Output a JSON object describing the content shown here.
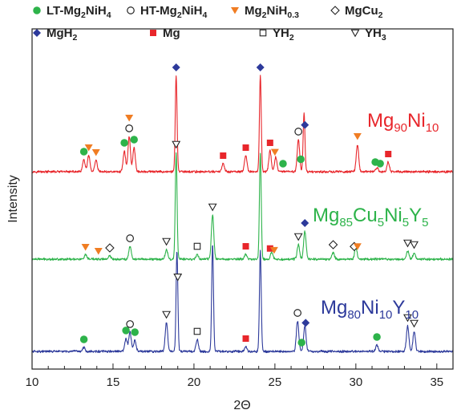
{
  "chart_data": {
    "type": "line",
    "title": "",
    "xlabel": "2Θ",
    "ylabel": "Intensity",
    "xlim": [
      10,
      36
    ],
    "x_ticks": [
      "10",
      "15",
      "20",
      "25",
      "30",
      "35"
    ],
    "y_ticks_shown": false,
    "grid": false,
    "legend_position": "top",
    "legend": [
      {
        "key": "lt",
        "label": {
          "base": "LT-Mg",
          "sub1": "2",
          "mid": "NiH",
          "sub2": "4"
        },
        "marker": "circle-filled",
        "color": "#2db34a"
      },
      {
        "key": "ht",
        "label": {
          "base": "HT-Mg",
          "sub1": "2",
          "mid": "NiH",
          "sub2": "4"
        },
        "marker": "circle-open",
        "color": "#222222"
      },
      {
        "key": "mni03",
        "label": {
          "base": "Mg",
          "sub1": "2",
          "mid": "NiH",
          "sub2": "0.3"
        },
        "marker": "triangle-down-filled",
        "color": "#f07d23"
      },
      {
        "key": "mgcu2",
        "label": {
          "base": "MgCu",
          "sub1": "2",
          "mid": "",
          "sub2": ""
        },
        "marker": "diamond-open",
        "color": "#222222"
      },
      {
        "key": "mgh2",
        "label": {
          "base": "MgH",
          "sub1": "2",
          "mid": "",
          "sub2": ""
        },
        "marker": "diamond-filled",
        "color": "#2d3a9b"
      },
      {
        "key": "mg",
        "label": {
          "base": "Mg",
          "sub1": "",
          "mid": "",
          "sub2": ""
        },
        "marker": "square-filled",
        "color": "#e8262b"
      },
      {
        "key": "yh2",
        "label": {
          "base": "YH",
          "sub1": "2",
          "mid": "",
          "sub2": ""
        },
        "marker": "square-open",
        "color": "#222222"
      },
      {
        "key": "yh3",
        "label": {
          "base": "YH",
          "sub1": "3",
          "mid": "",
          "sub2": ""
        },
        "marker": "triangle-down-open",
        "color": "#222222"
      }
    ],
    "series": [
      {
        "name": "Mg90Ni10",
        "label_parts": [
          {
            "t": "Mg"
          },
          {
            "t": "90",
            "sub": true
          },
          {
            "t": "Ni"
          },
          {
            "t": "10",
            "sub": true
          }
        ],
        "color": "#e8262b",
        "peaks": [
          {
            "x": 13.2,
            "h": 15
          },
          {
            "x": 13.5,
            "h": 20
          },
          {
            "x": 13.95,
            "h": 14
          },
          {
            "x": 15.7,
            "h": 26
          },
          {
            "x": 16.0,
            "h": 44
          },
          {
            "x": 16.3,
            "h": 30
          },
          {
            "x": 18.9,
            "h": 120
          },
          {
            "x": 21.8,
            "h": 10
          },
          {
            "x": 23.2,
            "h": 20
          },
          {
            "x": 24.1,
            "h": 120
          },
          {
            "x": 24.7,
            "h": 26
          },
          {
            "x": 25.05,
            "h": 18
          },
          {
            "x": 26.45,
            "h": 40
          },
          {
            "x": 26.8,
            "h": 73
          },
          {
            "x": 30.1,
            "h": 34
          },
          {
            "x": 31.3,
            "h": 5
          },
          {
            "x": 32.0,
            "h": 12
          }
        ],
        "markers": [
          {
            "x": 13.2,
            "kind": "lt"
          },
          {
            "x": 13.5,
            "kind": "mni03"
          },
          {
            "x": 13.95,
            "kind": "mni03"
          },
          {
            "x": 15.7,
            "kind": "lt"
          },
          {
            "x": 16.0,
            "kind": "ht"
          },
          {
            "x": 16.0,
            "kind": "mni03"
          },
          {
            "x": 16.3,
            "kind": "lt"
          },
          {
            "x": 18.9,
            "kind": "mgh2"
          },
          {
            "x": 21.8,
            "kind": "mg"
          },
          {
            "x": 23.2,
            "kind": "mg"
          },
          {
            "x": 24.1,
            "kind": "mgh2"
          },
          {
            "x": 24.7,
            "kind": "mg"
          },
          {
            "x": 25.0,
            "kind": "mni03"
          },
          {
            "x": 25.5,
            "kind": "lt"
          },
          {
            "x": 26.45,
            "kind": "ht"
          },
          {
            "x": 26.6,
            "kind": "lt"
          },
          {
            "x": 26.85,
            "kind": "mgh2"
          },
          {
            "x": 30.1,
            "kind": "mni03"
          },
          {
            "x": 31.2,
            "kind": "lt"
          },
          {
            "x": 31.5,
            "kind": "lt"
          },
          {
            "x": 32.0,
            "kind": "mg"
          }
        ]
      },
      {
        "name": "Mg85Cu5Ni5Y5",
        "label_parts": [
          {
            "t": "Mg"
          },
          {
            "t": "85",
            "sub": true
          },
          {
            "t": "Cu"
          },
          {
            "t": "5",
            "sub": true
          },
          {
            "t": "Ni"
          },
          {
            "t": "5",
            "sub": true
          },
          {
            "t": "Y"
          },
          {
            "t": "5",
            "sub": true
          }
        ],
        "color": "#2db34a",
        "peaks": [
          {
            "x": 13.3,
            "h": 5
          },
          {
            "x": 14.8,
            "h": 4
          },
          {
            "x": 16.05,
            "h": 16
          },
          {
            "x": 18.3,
            "h": 12
          },
          {
            "x": 18.9,
            "h": 133
          },
          {
            "x": 20.2,
            "h": 6
          },
          {
            "x": 21.15,
            "h": 55
          },
          {
            "x": 23.2,
            "h": 6
          },
          {
            "x": 24.1,
            "h": 133
          },
          {
            "x": 24.8,
            "h": 8
          },
          {
            "x": 26.45,
            "h": 18
          },
          {
            "x": 26.85,
            "h": 35
          },
          {
            "x": 28.6,
            "h": 8
          },
          {
            "x": 30.0,
            "h": 14
          },
          {
            "x": 33.2,
            "h": 10
          },
          {
            "x": 33.6,
            "h": 8
          }
        ],
        "markers": [
          {
            "x": 13.3,
            "kind": "mni03"
          },
          {
            "x": 14.1,
            "kind": "mni03"
          },
          {
            "x": 14.8,
            "kind": "mgcu2"
          },
          {
            "x": 16.05,
            "kind": "ht"
          },
          {
            "x": 18.3,
            "kind": "yh3"
          },
          {
            "x": 18.9,
            "kind": "yh3"
          },
          {
            "x": 20.2,
            "kind": "yh2"
          },
          {
            "x": 21.15,
            "kind": "yh3"
          },
          {
            "x": 23.2,
            "kind": "mg"
          },
          {
            "x": 24.7,
            "kind": "mg"
          },
          {
            "x": 24.95,
            "kind": "mni03"
          },
          {
            "x": 26.45,
            "kind": "yh3"
          },
          {
            "x": 26.85,
            "kind": "mgh2"
          },
          {
            "x": 28.6,
            "kind": "mgcu2"
          },
          {
            "x": 29.9,
            "kind": "mgcu2"
          },
          {
            "x": 30.1,
            "kind": "mni03"
          },
          {
            "x": 33.2,
            "kind": "yh3"
          },
          {
            "x": 33.6,
            "kind": "yh3"
          }
        ]
      },
      {
        "name": "Mg80Ni10Y10",
        "label_parts": [
          {
            "t": "Mg"
          },
          {
            "t": "80",
            "sub": true
          },
          {
            "t": "Ni"
          },
          {
            "t": "10",
            "sub": true
          },
          {
            "t": "Y"
          },
          {
            "t": "10",
            "sub": true
          }
        ],
        "color": "#2d3a9b",
        "peaks": [
          {
            "x": 13.2,
            "h": 5
          },
          {
            "x": 15.8,
            "h": 16
          },
          {
            "x": 16.05,
            "h": 24
          },
          {
            "x": 16.35,
            "h": 14
          },
          {
            "x": 18.3,
            "h": 36
          },
          {
            "x": 18.95,
            "h": 125
          },
          {
            "x": 20.2,
            "h": 15
          },
          {
            "x": 21.15,
            "h": 133
          },
          {
            "x": 23.2,
            "h": 6
          },
          {
            "x": 24.1,
            "h": 125
          },
          {
            "x": 26.4,
            "h": 38
          },
          {
            "x": 26.85,
            "h": 32
          },
          {
            "x": 31.3,
            "h": 8
          },
          {
            "x": 33.2,
            "h": 32
          },
          {
            "x": 33.6,
            "h": 25
          }
        ],
        "markers": [
          {
            "x": 13.2,
            "kind": "lt"
          },
          {
            "x": 15.8,
            "kind": "lt"
          },
          {
            "x": 16.05,
            "kind": "ht"
          },
          {
            "x": 16.35,
            "kind": "lt"
          },
          {
            "x": 18.3,
            "kind": "yh3"
          },
          {
            "x": 19.0,
            "kind": "yh3"
          },
          {
            "x": 20.2,
            "kind": "yh2"
          },
          {
            "x": 23.2,
            "kind": "mg"
          },
          {
            "x": 26.4,
            "kind": "ht"
          },
          {
            "x": 26.65,
            "kind": "lt"
          },
          {
            "x": 26.9,
            "kind": "mgh2"
          },
          {
            "x": 31.3,
            "kind": "lt"
          },
          {
            "x": 33.2,
            "kind": "yh3"
          },
          {
            "x": 33.6,
            "kind": "yh3"
          }
        ]
      }
    ]
  }
}
